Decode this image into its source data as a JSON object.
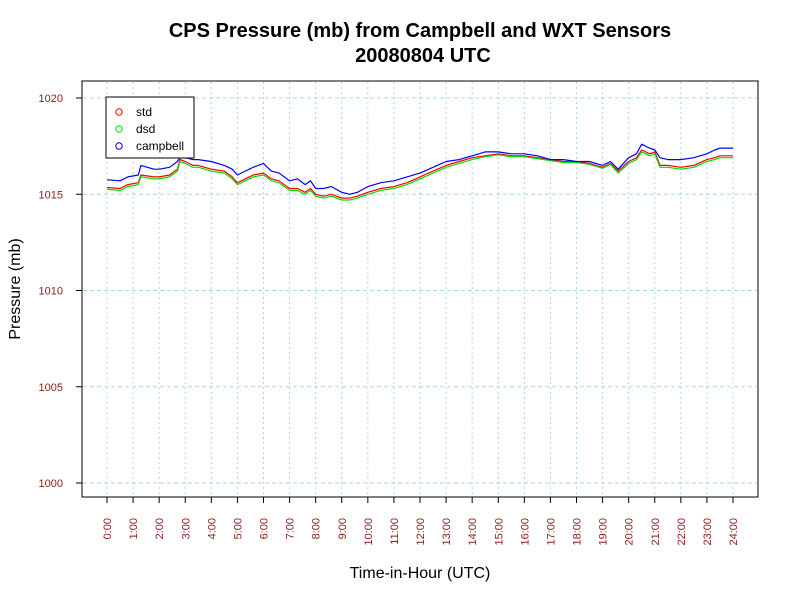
{
  "chart_data": {
    "type": "line",
    "title": "CPS Pressure (mb) from Campbell and WXT Sensors",
    "subtitle": "20080804  UTC",
    "xlabel": "Time-in-Hour (UTC)",
    "ylabel": "Pressure (mb)",
    "xlim": [
      0,
      24
    ],
    "ylim": [
      1000,
      1020
    ],
    "yticks": [
      1000,
      1005,
      1010,
      1015,
      1020
    ],
    "xtick_labels": [
      "0:00",
      "1:00",
      "2:00",
      "3:00",
      "4:00",
      "5:00",
      "6:00",
      "7:00",
      "8:00",
      "9:00",
      "10:00",
      "11:00",
      "12:00",
      "13:00",
      "14:00",
      "15:00",
      "16:00",
      "17:00",
      "18:00",
      "19:00",
      "20:00",
      "21:00",
      "22:00",
      "23:00",
      "24:00"
    ],
    "grid": true,
    "legend_position": "top-left",
    "tick_color": "#8b1a1a",
    "grid_color": "#a8d8e8",
    "series": [
      {
        "name": "std",
        "color": "#ff0000",
        "x": [
          0,
          0.5,
          0.8,
          1.2,
          1.3,
          1.8,
          2,
          2.4,
          2.7,
          2.8,
          3,
          3.3,
          3.5,
          4,
          4.5,
          4.8,
          5,
          5.3,
          5.6,
          6,
          6.3,
          6.6,
          7,
          7.3,
          7.6,
          7.8,
          8,
          8.3,
          8.6,
          9,
          9.3,
          9.6,
          10,
          10.5,
          11,
          11.5,
          12,
          12.5,
          13,
          13.5,
          14,
          14.5,
          15,
          15.5,
          16,
          16.5,
          17,
          17.5,
          18,
          18.5,
          19,
          19.3,
          19.6,
          20,
          20.3,
          20.5,
          20.8,
          21,
          21.2,
          21.5,
          22,
          22.5,
          23,
          23.3,
          23.5,
          24
        ],
        "values": [
          1015.35,
          1015.3,
          1015.5,
          1015.6,
          1016.0,
          1015.9,
          1015.9,
          1016.0,
          1016.3,
          1016.8,
          1016.7,
          1016.5,
          1016.5,
          1016.3,
          1016.2,
          1015.9,
          1015.6,
          1015.8,
          1016.0,
          1016.1,
          1015.8,
          1015.7,
          1015.3,
          1015.3,
          1015.1,
          1015.3,
          1015.0,
          1014.9,
          1015.0,
          1014.8,
          1014.8,
          1014.9,
          1015.1,
          1015.3,
          1015.4,
          1015.6,
          1015.9,
          1016.2,
          1016.5,
          1016.7,
          1016.9,
          1017.0,
          1017.1,
          1017.0,
          1017.0,
          1016.9,
          1016.8,
          1016.7,
          1016.7,
          1016.6,
          1016.4,
          1016.6,
          1016.2,
          1016.7,
          1016.9,
          1017.3,
          1017.1,
          1017.2,
          1016.5,
          1016.5,
          1016.4,
          1016.5,
          1016.8,
          1016.9,
          1017.0,
          1017.0
        ]
      },
      {
        "name": "dsd",
        "color": "#00e000",
        "x": [
          0,
          0.5,
          0.8,
          1.2,
          1.3,
          1.8,
          2,
          2.4,
          2.7,
          2.8,
          3,
          3.3,
          3.5,
          4,
          4.5,
          4.8,
          5,
          5.3,
          5.6,
          6,
          6.3,
          6.6,
          7,
          7.3,
          7.6,
          7.8,
          8,
          8.3,
          8.6,
          9,
          9.3,
          9.6,
          10,
          10.5,
          11,
          11.5,
          12,
          12.5,
          13,
          13.5,
          14,
          14.5,
          15,
          15.5,
          16,
          16.5,
          17,
          17.5,
          18,
          18.5,
          19,
          19.3,
          19.6,
          20,
          20.3,
          20.5,
          20.8,
          21,
          21.2,
          21.5,
          22,
          22.5,
          23,
          23.3,
          23.5,
          24
        ],
        "values": [
          1015.25,
          1015.2,
          1015.4,
          1015.5,
          1015.9,
          1015.8,
          1015.8,
          1015.9,
          1016.2,
          1016.7,
          1016.6,
          1016.4,
          1016.4,
          1016.2,
          1016.1,
          1015.8,
          1015.5,
          1015.7,
          1015.9,
          1016.0,
          1015.7,
          1015.6,
          1015.2,
          1015.2,
          1015.0,
          1015.2,
          1014.9,
          1014.8,
          1014.9,
          1014.7,
          1014.7,
          1014.8,
          1015.0,
          1015.2,
          1015.3,
          1015.5,
          1015.8,
          1016.1,
          1016.4,
          1016.6,
          1016.8,
          1016.95,
          1017.05,
          1016.95,
          1016.95,
          1016.85,
          1016.75,
          1016.65,
          1016.65,
          1016.55,
          1016.35,
          1016.55,
          1016.1,
          1016.6,
          1016.8,
          1017.2,
          1017.0,
          1017.1,
          1016.4,
          1016.4,
          1016.3,
          1016.4,
          1016.7,
          1016.8,
          1016.9,
          1016.9
        ]
      },
      {
        "name": "campbell",
        "color": "#0000ff",
        "x": [
          0,
          0.5,
          0.8,
          1.2,
          1.3,
          1.8,
          2,
          2.4,
          2.7,
          2.8,
          3,
          3.3,
          3.5,
          4,
          4.5,
          4.8,
          5,
          5.3,
          5.6,
          6,
          6.3,
          6.6,
          7,
          7.3,
          7.6,
          7.8,
          8,
          8.3,
          8.6,
          9,
          9.3,
          9.6,
          10,
          10.5,
          11,
          11.5,
          12,
          12.5,
          13,
          13.5,
          14,
          14.5,
          15,
          15.5,
          16,
          16.5,
          17,
          17.5,
          18,
          18.5,
          19,
          19.3,
          19.6,
          20,
          20.3,
          20.5,
          20.8,
          21,
          21.2,
          21.5,
          22,
          22.5,
          23,
          23.3,
          23.5,
          24
        ],
        "values": [
          1015.75,
          1015.7,
          1015.9,
          1016.0,
          1016.5,
          1016.3,
          1016.3,
          1016.4,
          1016.7,
          1016.9,
          1016.9,
          1016.8,
          1016.8,
          1016.7,
          1016.5,
          1016.3,
          1016.0,
          1016.2,
          1016.4,
          1016.6,
          1016.2,
          1016.1,
          1015.7,
          1015.8,
          1015.5,
          1015.7,
          1015.3,
          1015.3,
          1015.4,
          1015.1,
          1015.0,
          1015.1,
          1015.4,
          1015.6,
          1015.7,
          1015.9,
          1016.1,
          1016.4,
          1016.7,
          1016.8,
          1017.0,
          1017.2,
          1017.2,
          1017.1,
          1017.1,
          1017.0,
          1016.8,
          1016.8,
          1016.7,
          1016.7,
          1016.5,
          1016.7,
          1016.3,
          1016.9,
          1017.1,
          1017.6,
          1017.4,
          1017.3,
          1016.9,
          1016.8,
          1016.8,
          1016.9,
          1017.1,
          1017.3,
          1017.4,
          1017.4
        ]
      }
    ]
  }
}
